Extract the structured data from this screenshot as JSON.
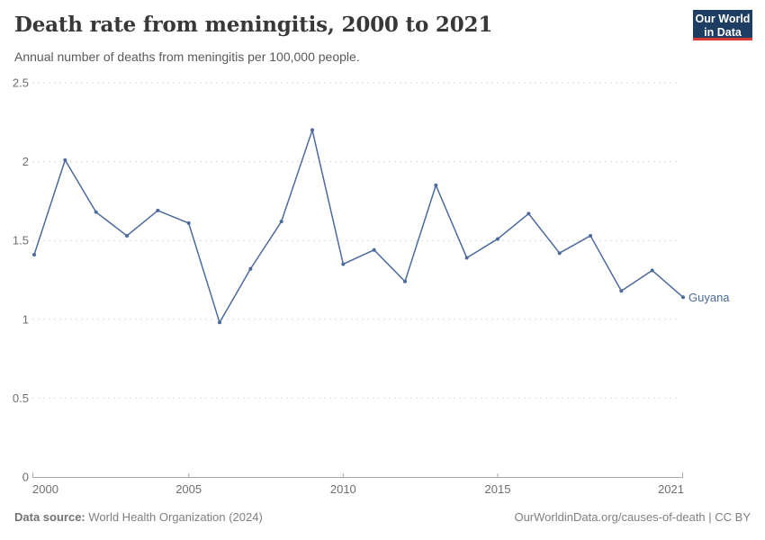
{
  "header": {
    "title": "Death rate from meningitis, 2000 to 2021",
    "subtitle": "Annual number of deaths from meningitis per 100,000 people."
  },
  "logo": {
    "line1": "Our World",
    "line2": "in Data",
    "bg_color": "#1d3d63",
    "bar_color": "#d73b33"
  },
  "chart_data": {
    "type": "line",
    "title": "Death rate from meningitis, 2000 to 2021",
    "x": [
      2000,
      2001,
      2002,
      2003,
      2004,
      2005,
      2006,
      2007,
      2008,
      2009,
      2010,
      2011,
      2012,
      2013,
      2014,
      2015,
      2016,
      2017,
      2018,
      2019,
      2020,
      2021
    ],
    "series": [
      {
        "name": "Guyana",
        "color": "#4c6a9c",
        "values": [
          1.41,
          2.01,
          1.68,
          1.53,
          1.69,
          1.61,
          0.98,
          1.32,
          1.62,
          2.2,
          1.35,
          1.44,
          1.24,
          1.85,
          1.39,
          1.51,
          1.67,
          1.42,
          1.53,
          1.18,
          1.31,
          1.14
        ]
      }
    ],
    "ylim": [
      0,
      2.5
    ],
    "yticks": [
      0,
      0.5,
      1,
      1.5,
      2,
      2.5
    ],
    "xticks": [
      2000,
      2005,
      2010,
      2015,
      2021
    ],
    "grid": "horizontal-dashed",
    "legend_position": "end-of-line-label",
    "axis_text_color": "#6e6e6e",
    "grid_color": "#dedede",
    "axis_line_color": "#a8a8a8"
  },
  "footer": {
    "source_label": "Data source:",
    "source_value": " World Health Organization (2024)",
    "right_text": "OurWorldinData.org/causes-of-death | CC BY"
  }
}
